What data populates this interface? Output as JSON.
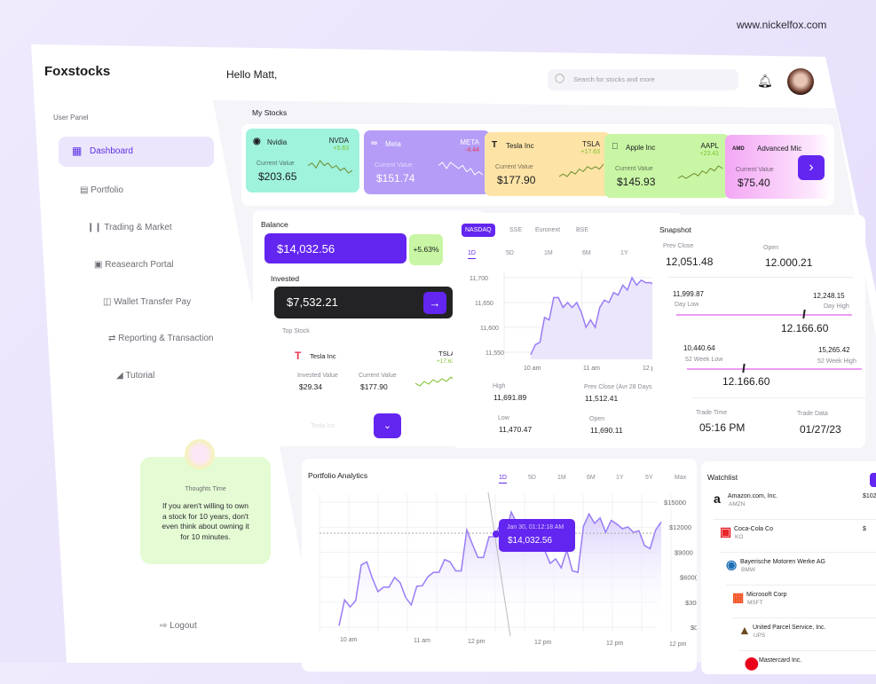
{
  "watermark": "www.nickelfox.com",
  "app": {
    "logo": "Foxstocks",
    "greeting": "Hello Matt,"
  },
  "search": {
    "placeholder": "Search for stocks and more"
  },
  "sidebar": {
    "section": "User Panel",
    "items": [
      {
        "label": "Dashboard",
        "icon": "dashboard-icon",
        "active": true
      },
      {
        "label": "Portfolio",
        "icon": "briefcase-icon"
      },
      {
        "label": "Trading & Market",
        "icon": "candlestick-icon"
      },
      {
        "label": "Reasearch Portal",
        "icon": "research-icon"
      },
      {
        "label": "Wallet Transfer Pay",
        "icon": "wallet-icon"
      },
      {
        "label": "Reporting & Transaction",
        "icon": "swap-icon"
      },
      {
        "label": "Tutorial",
        "icon": "megaphone-icon"
      }
    ],
    "thought": {
      "title": "Thoughts Time",
      "lines": [
        "If you aren't willing to own",
        "a stock for 10 years, don't",
        "even think about owning it",
        "for 10 minutes."
      ]
    },
    "logout": "Logout"
  },
  "my_stocks": {
    "title": "My Stocks",
    "current_label": "Current Value",
    "cards": [
      {
        "name": "Nvidia",
        "ticker": "NVDA",
        "change": "+5.63",
        "value": "$203.65",
        "color": "#9ff2dc",
        "trend": [
          5,
          6,
          4,
          7,
          5,
          6,
          4,
          5,
          3,
          4,
          2,
          3
        ]
      },
      {
        "name": "Meta",
        "ticker": "META",
        "change": "-4.44",
        "value": "$151.74",
        "color": "#b49cf7",
        "trend": [
          6,
          7,
          5,
          7,
          6,
          5,
          6,
          4,
          5,
          3,
          4,
          3
        ]
      },
      {
        "name": "Tesla Inc",
        "ticker": "TSLA",
        "change": "+17.63",
        "value": "$177.90",
        "color": "#fde4a6",
        "trend": [
          2,
          3,
          2,
          4,
          3,
          5,
          4,
          6,
          5,
          6,
          5,
          7
        ]
      },
      {
        "name": "Apple Inc",
        "ticker": "AAPL",
        "change": "+23.41",
        "value": "$145.93",
        "color": "#c8f6a4",
        "trend": [
          2,
          3,
          2,
          3,
          4,
          3,
          5,
          4,
          6,
          5,
          7,
          6
        ]
      },
      {
        "name": "Advanced Mic",
        "ticker": "",
        "change": "",
        "value": "$75.40",
        "color": "#f3a6f4"
      }
    ]
  },
  "balance": {
    "title": "Balance",
    "amount": "$14,032.56",
    "change": "+5.63%",
    "invested_title": "Invested",
    "invested": "$7,532.21",
    "top_stock": {
      "label": "Top Stock",
      "name": "Tesla Inc",
      "ticker": "TSLA",
      "change": "+17.63",
      "invested_label": "Invested Value",
      "invested": "$29.34",
      "current_label": "Current Value",
      "current": "$177.90",
      "next_name": "Tesla Inc"
    }
  },
  "market": {
    "exchanges": [
      "NASDAQ",
      "SSE",
      "Euronext",
      "BSE"
    ],
    "active_exchange": "NASDAQ",
    "periods": [
      "1D",
      "5D",
      "1M",
      "6M",
      "1Y"
    ],
    "active_period": "1D",
    "stats": [
      {
        "label": "High",
        "value": "11,691.89"
      },
      {
        "label": "Prev Close (Avr 28 Days)",
        "value": "11,512.41"
      },
      {
        "label": "Low",
        "value": "11,470.47"
      },
      {
        "label": "Open",
        "value": "11,690.11"
      }
    ]
  },
  "snapshot": {
    "title": "Snapshot",
    "prev_close_label": "Prev Close",
    "prev_close": "12,051.48",
    "open_label": "Open",
    "open": "12.000.21",
    "day_low": "11,999.87",
    "day_low_label": "Day Low",
    "day_high": "12,248.15",
    "day_high_label": "Day High",
    "day_current": "12.166.60",
    "day_position": 0.72,
    "wk_low": "10,440.64",
    "wk_low_label": "52 Week Low",
    "wk_high": "15,265.42",
    "wk_high_label": "52 Week High",
    "wk_current": "12.166.60",
    "wk_position": 0.32,
    "trade_time_label": "Trade Time",
    "trade_time": "05:16 PM",
    "trade_date_label": "Trade Data",
    "trade_date": "01/27/23",
    "bar_color": "#ee9bf2"
  },
  "portfolio": {
    "title": "Portfolio Analytics",
    "periods": [
      "1D",
      "5D",
      "1M",
      "6M",
      "1Y",
      "5Y",
      "Max"
    ],
    "active_period": "1D",
    "tooltip": {
      "date": "Jan 30, 01:12:18 AM",
      "value": "$14,032.56"
    }
  },
  "watchlist": {
    "title": "Watchlist",
    "items": [
      {
        "name": "Amazon.com, Inc.",
        "ticker": "AMZN",
        "price": "$102"
      },
      {
        "name": "Coca-Cola Co",
        "ticker": "KO",
        "price": "$"
      },
      {
        "name": "Bayerische Motoren Werke AG",
        "ticker": "BMW"
      },
      {
        "name": "Microsoft Corp",
        "ticker": "MSFT"
      },
      {
        "name": "United Parcel Service, Inc.",
        "ticker": "UPS"
      },
      {
        "name": "Mastercard Inc.",
        "ticker": ""
      }
    ]
  },
  "colors": {
    "accent": "#6325f0",
    "positive": "#7cc02a",
    "negative": "#e8384f"
  },
  "chart_data": [
    {
      "type": "area",
      "yticks": [
        "11,700",
        "11,650",
        "11,600",
        "11,550"
      ],
      "ylim": [
        11550,
        11700
      ],
      "xticks": [
        "10 am",
        "11 am",
        "12 pm"
      ],
      "values": [
        11545,
        11565,
        11570,
        11620,
        11615,
        11660,
        11660,
        11640,
        11650,
        11640,
        11650,
        11630,
        11600,
        11615,
        11600,
        11640,
        11655,
        11650,
        11670,
        11665,
        11685,
        11675,
        11700,
        11685,
        11695,
        11690,
        11690,
        11685
      ]
    },
    {
      "type": "area",
      "yticks": [
        "$15000",
        "$12000",
        "$9000",
        "$6000",
        "$3000",
        "$0"
      ],
      "ylim": [
        0,
        15000
      ],
      "xticks": [
        "10 am",
        "11 am",
        "12 pm",
        "12 pm",
        "12 pm",
        "12 pm"
      ],
      "values": [
        180,
        3270,
        2420,
        3200,
        7470,
        7830,
        5870,
        4270,
        4800,
        4800,
        5980,
        5340,
        3560,
        2670,
        4910,
        4980,
        6050,
        6580,
        6580,
        8110,
        7830,
        6760,
        6760,
        11670,
        9960,
        8360,
        8360,
        10850,
        10850,
        12350,
        11210,
        13810,
        12460,
        12100,
        12630,
        11210,
        9610,
        9250,
        7650,
        8190,
        7120,
        9250,
        6760,
        6580,
        12100,
        13590,
        12460,
        13100,
        11390,
        12810,
        12380,
        11810,
        12030,
        11390,
        11570,
        9790,
        9430,
        11670,
        12630
      ]
    }
  ]
}
